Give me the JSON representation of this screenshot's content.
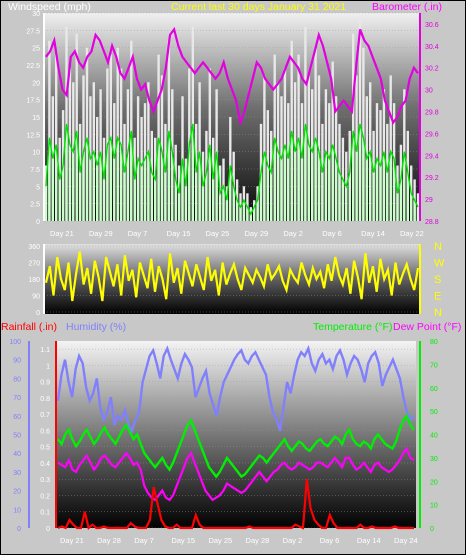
{
  "colors": {
    "wind": "#ffffff",
    "gust": "#e8e8e8",
    "baro": "#e000e0",
    "temp": "#00ee00",
    "dew": "#ff00ff",
    "humid": "#8080ff",
    "rain": "#ff0000",
    "dir": "#ffff00",
    "header_wind": "#ffffff",
    "header_title": "#ffff00"
  },
  "header": {
    "wind_label": "Windspeed (mph)",
    "title": "Current last 30 days January 31 2021",
    "baro_label": "Barometer (.in)"
  },
  "bottom_header": {
    "rain_label": "Rainfall (.in)",
    "humid_label": "Humidity (%)",
    "temp_label": "Temperature (°F)",
    "dew_label": "Dew Point (°F)"
  },
  "chart_data": [
    {
      "type": "line",
      "name": "wind-barometer",
      "x_tick_labels": [
        "Day 21",
        "Day 29",
        "Day 7",
        "Day 15",
        "Day 25",
        "Day 29",
        "Day 2",
        "Day 6",
        "Day 14",
        "Day 22"
      ],
      "y_left_ticks": [
        "0",
        "2.5",
        "5",
        "7.5",
        "10",
        "12.5",
        "15",
        "17.5",
        "20",
        "22.5",
        "25",
        "27.5",
        "30"
      ],
      "y_right_ticks": [
        "28.8",
        "29",
        "29.2",
        "29.4",
        "29.6",
        "29.8",
        "30",
        "30.2",
        "30.4",
        "30.6"
      ],
      "ylim_left": [
        0,
        30
      ],
      "ylim_right": [
        28.8,
        30.7
      ],
      "series": [
        {
          "color_key": "gust",
          "axis": "left",
          "values": [
            8,
            26,
            18,
            24,
            12,
            16,
            28,
            22,
            20,
            27,
            14,
            21,
            25,
            18,
            20,
            15,
            19,
            12,
            22,
            24,
            17,
            25,
            22,
            14,
            19,
            26,
            12,
            18,
            15,
            17,
            20,
            13,
            12,
            24,
            21,
            14,
            26,
            19,
            11,
            8,
            18,
            9,
            22,
            28,
            14,
            20,
            10,
            13,
            22,
            12,
            19,
            8,
            9,
            5,
            15,
            10,
            6,
            4,
            5,
            4,
            2,
            3,
            5,
            14,
            21,
            16,
            13,
            24,
            20,
            18,
            22,
            17,
            26,
            20,
            24,
            17,
            28,
            21,
            19,
            25,
            21,
            14,
            19,
            17,
            23,
            18,
            14,
            12,
            10,
            13,
            27,
            21,
            29,
            25,
            18,
            20,
            13,
            17,
            16,
            19,
            14,
            21,
            17,
            8,
            11,
            19,
            13,
            8,
            6,
            4
          ]
        },
        {
          "color_key": "wind",
          "axis": "left",
          "values": [
            5,
            12,
            9,
            11,
            6,
            8,
            14,
            11,
            10,
            13,
            7,
            10,
            12,
            9,
            10,
            8,
            10,
            6,
            11,
            12,
            9,
            12,
            11,
            7,
            10,
            13,
            6,
            9,
            8,
            9,
            10,
            7,
            6,
            12,
            10,
            7,
            13,
            10,
            6,
            4,
            9,
            5,
            11,
            14,
            7,
            10,
            5,
            7,
            11,
            6,
            10,
            4,
            5,
            3,
            8,
            5,
            3,
            2,
            3,
            2,
            1,
            2,
            3,
            7,
            10,
            8,
            7,
            12,
            10,
            9,
            11,
            9,
            13,
            10,
            12,
            9,
            14,
            11,
            10,
            12,
            10,
            7,
            10,
            9,
            11,
            9,
            7,
            6,
            5,
            7,
            13,
            10,
            14,
            12,
            9,
            10,
            7,
            9,
            8,
            10,
            7,
            10,
            9,
            4,
            6,
            10,
            7,
            4,
            3,
            2
          ]
        },
        {
          "color_key": "baro",
          "axis": "right",
          "values": [
            30.3,
            30.35,
            30.45,
            30.2,
            30.0,
            29.95,
            30.3,
            30.35,
            30.25,
            30.2,
            30.3,
            30.35,
            30.5,
            30.45,
            30.35,
            30.25,
            30.4,
            30.3,
            30.15,
            30.1,
            30.2,
            30.3,
            30.1,
            30.0,
            30.05,
            29.9,
            29.8,
            29.9,
            30.0,
            30.2,
            30.5,
            30.55,
            30.4,
            30.3,
            30.25,
            30.2,
            30.15,
            30.2,
            30.25,
            30.2,
            30.15,
            30.1,
            30.15,
            30.25,
            30.1,
            30.0,
            29.9,
            29.7,
            29.8,
            29.95,
            30.1,
            30.25,
            30.2,
            30.1,
            30.05,
            30.0,
            30.05,
            30.1,
            30.2,
            30.3,
            30.25,
            30.2,
            30.1,
            30.05,
            30.2,
            30.35,
            30.5,
            30.4,
            30.25,
            30.1,
            29.8,
            29.85,
            29.9,
            29.85,
            29.8,
            30.2,
            30.55,
            30.45,
            30.4,
            30.3,
            30.2,
            30.1,
            29.9,
            29.8,
            29.7,
            29.75,
            29.85,
            29.9,
            30.1,
            30.2,
            30.15
          ]
        }
      ]
    },
    {
      "type": "line",
      "name": "wind-direction",
      "y_left_ticks": [
        "360",
        "270",
        "180",
        "90",
        "0"
      ],
      "y_right_ticks": [
        "N",
        "W",
        "S",
        "E",
        "N"
      ],
      "ylim_left": [
        0,
        360
      ],
      "series": [
        {
          "color_key": "dir",
          "axis": "left",
          "values": [
            160,
            250,
            90,
            300,
            180,
            120,
            270,
            60,
            210,
            330,
            150,
            240,
            100,
            280,
            190,
            60,
            300,
            220,
            140,
            260,
            90,
            310,
            170,
            230,
            80,
            270,
            200,
            130,
            290,
            110,
            250,
            180,
            70,
            320,
            160,
            240,
            100,
            280,
            210,
            140,
            260,
            190,
            120,
            300,
            170,
            230,
            90,
            270,
            150,
            210,
            260,
            180,
            120,
            240,
            200,
            160,
            230,
            190,
            140,
            260,
            180,
            210,
            250,
            170,
            120,
            230,
            190,
            160,
            270,
            200,
            150,
            240,
            180,
            220,
            130,
            260,
            170,
            300,
            200,
            150,
            240,
            100,
            280,
            190,
            70,
            320,
            160,
            250,
            110,
            290,
            180,
            230,
            90,
            270,
            150,
            210,
            260,
            180,
            120,
            240
          ]
        }
      ]
    },
    {
      "type": "line",
      "name": "rain-humidity-temperature",
      "x_tick_labels": [
        "Day 21",
        "Day 28",
        "Day 7",
        "Day 15",
        "Day 25",
        "Day 28",
        "Day 2",
        "Day 6",
        "Day 14",
        "Day 24"
      ],
      "y_left_ticks_humidity": [
        "0",
        "10",
        "20",
        "30",
        "40",
        "50",
        "60",
        "70",
        "80",
        "90",
        "100"
      ],
      "y_left_ticks_rain": [
        "0",
        "0.1",
        "0.2",
        "0.3",
        "0.4",
        "0.5",
        "0.6",
        "0.7",
        "0.8",
        "0.9",
        "1",
        "1.1"
      ],
      "y_right_ticks": [
        "0",
        "10",
        "20",
        "30",
        "40",
        "50",
        "60",
        "70",
        "80"
      ],
      "ylim_humidity": [
        0,
        100
      ],
      "ylim_rain": [
        0,
        1.15
      ],
      "ylim_temp": [
        0,
        80
      ],
      "series": [
        {
          "color_key": "humid",
          "axis": "humidity",
          "values": [
            68,
            82,
            90,
            78,
            70,
            85,
            92,
            88,
            75,
            68,
            72,
            80,
            64,
            58,
            62,
            70,
            55,
            60,
            58,
            63,
            55,
            52,
            58,
            62,
            78,
            85,
            92,
            95,
            88,
            80,
            92,
            96,
            90,
            85,
            80,
            88,
            93,
            90,
            86,
            70,
            75,
            80,
            84,
            72,
            66,
            60,
            70,
            78,
            82,
            86,
            90,
            93,
            95,
            90,
            88,
            92,
            94,
            90,
            86,
            82,
            70,
            62,
            58,
            52,
            65,
            78,
            72,
            82,
            90,
            94,
            92,
            96,
            88,
            84,
            90,
            93,
            88,
            90,
            85,
            92,
            95,
            90,
            82,
            88,
            92,
            90,
            85,
            78,
            88,
            92,
            94,
            88,
            76,
            82,
            86,
            90,
            85,
            80,
            70,
            62,
            58,
            60
          ]
        },
        {
          "color_key": "temp",
          "axis": "temp",
          "values": [
            38,
            36,
            40,
            42,
            38,
            35,
            37,
            40,
            42,
            39,
            36,
            38,
            41,
            43,
            40,
            38,
            36,
            39,
            42,
            44,
            41,
            38,
            40,
            36,
            32,
            30,
            28,
            26,
            28,
            30,
            27,
            25,
            28,
            32,
            36,
            40,
            44,
            46,
            42,
            38,
            34,
            30,
            26,
            24,
            22,
            24,
            27,
            30,
            28,
            26,
            24,
            22,
            23,
            25,
            27,
            29,
            31,
            30,
            28,
            30,
            32,
            34,
            36,
            38,
            35,
            33,
            35,
            37,
            36,
            34,
            33,
            35,
            37,
            38,
            36,
            35,
            37,
            39,
            38,
            36,
            40,
            42,
            38,
            36,
            35,
            37,
            36,
            34,
            38,
            40,
            38,
            36,
            35,
            34,
            37,
            42,
            46,
            48,
            44,
            42
          ]
        },
        {
          "color_key": "dew",
          "axis": "temp",
          "values": [
            28,
            27,
            26,
            29,
            25,
            24,
            27,
            29,
            31,
            28,
            25,
            27,
            30,
            31,
            29,
            27,
            26,
            28,
            30,
            32,
            30,
            27,
            28,
            25,
            18,
            15,
            13,
            12,
            14,
            16,
            13,
            12,
            14,
            18,
            22,
            26,
            30,
            32,
            28,
            24,
            20,
            16,
            14,
            12,
            13,
            14,
            16,
            19,
            18,
            17,
            16,
            15,
            16,
            18,
            20,
            22,
            24,
            22,
            20,
            22,
            24,
            25,
            27,
            28,
            26,
            25,
            26,
            28,
            27,
            26,
            25,
            26,
            28,
            28,
            27,
            26,
            28,
            30,
            28,
            26,
            30,
            30,
            27,
            25,
            26,
            28,
            26,
            24,
            27,
            28,
            26,
            25,
            24,
            25,
            27,
            29,
            32,
            34,
            30,
            29
          ]
        },
        {
          "color_key": "rain",
          "axis": "rain",
          "values": [
            0,
            0.01,
            0,
            0.05,
            0.02,
            0,
            0,
            0.1,
            0,
            0.02,
            0,
            0,
            0.01,
            0,
            0,
            0,
            0,
            0,
            0,
            0.03,
            0.01,
            0,
            0,
            0,
            0.05,
            0.25,
            0.15,
            0.05,
            0.01,
            0,
            0,
            0.02,
            0,
            0,
            0,
            0,
            0.08,
            0.02,
            0,
            0,
            0,
            0,
            0,
            0,
            0,
            0,
            0,
            0,
            0,
            0,
            0.01,
            0,
            0,
            0,
            0,
            0,
            0,
            0,
            0,
            0,
            0,
            0,
            0.02,
            0.01,
            0,
            0.3,
            0.12,
            0.05,
            0.02,
            0,
            0,
            0.08,
            0.03,
            0,
            0,
            0,
            0,
            0,
            0,
            0.02,
            0,
            0,
            0.01,
            0,
            0,
            0,
            0,
            0,
            0.01,
            0,
            0,
            0,
            0,
            0
          ]
        }
      ]
    }
  ]
}
